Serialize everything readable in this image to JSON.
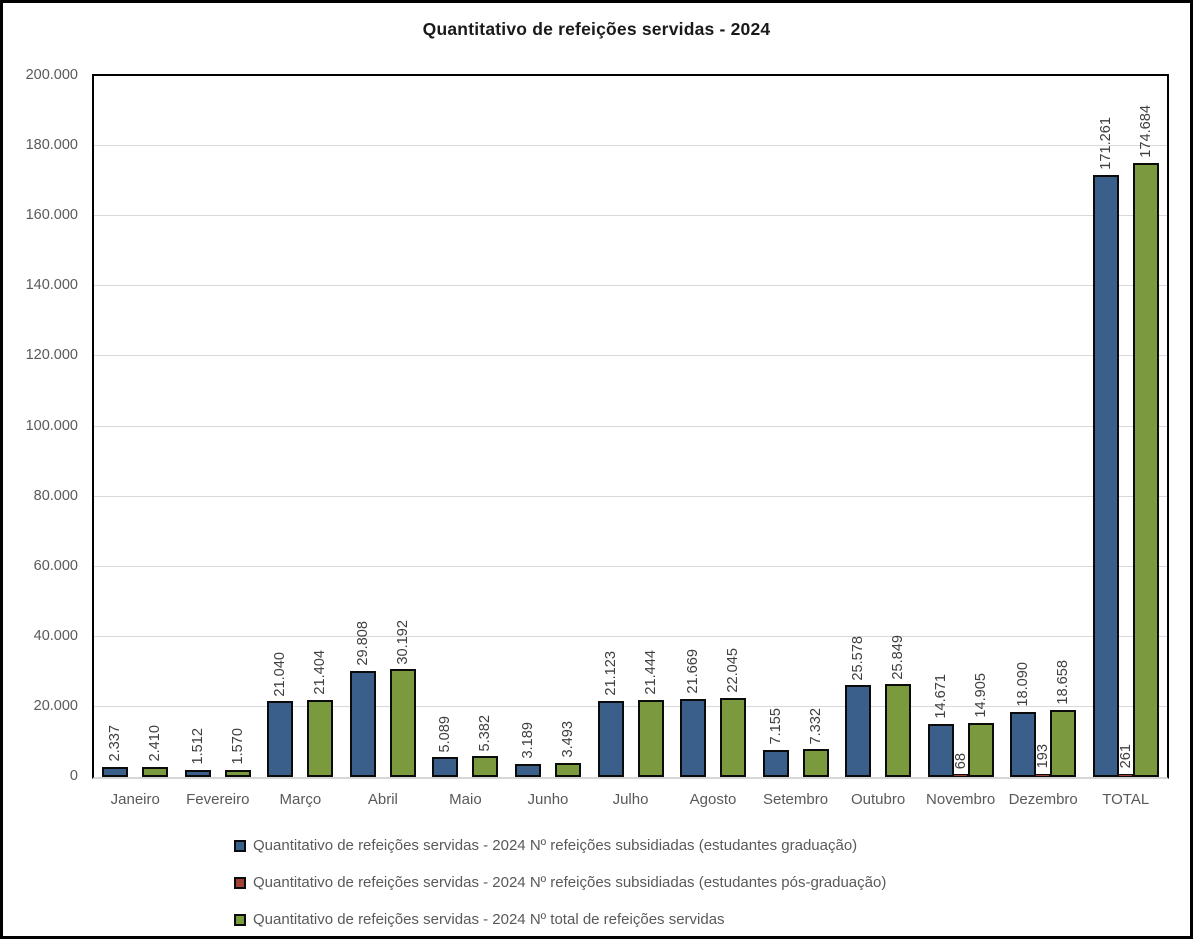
{
  "chart_data": {
    "type": "bar",
    "title": "Quantitativo de refeições servidas - 2024",
    "categories": [
      "Janeiro",
      "Fevereiro",
      "Março",
      "Abril",
      "Maio",
      "Junho",
      "Julho",
      "Agosto",
      "Setembro",
      "Outubro",
      "Novembro",
      "Dezembro",
      "TOTAL"
    ],
    "series": [
      {
        "name": "Quantitativo de refeições servidas - 2024 Nº refeições subsidiadas (estudantes graduação)",
        "color": "#3a5f8a",
        "values": [
          2337,
          1512,
          21040,
          29808,
          5089,
          3189,
          21123,
          21669,
          7155,
          25578,
          14671,
          18090,
          171261
        ]
      },
      {
        "name": "Quantitativo de refeições servidas - 2024 Nº refeições subsidiadas (estudantes pós-graduação)",
        "color": "#9e4139",
        "values": [
          null,
          null,
          null,
          null,
          null,
          null,
          null,
          null,
          null,
          null,
          68,
          193,
          261
        ]
      },
      {
        "name": "Quantitativo de refeições servidas - 2024 Nº total de refeições servidas",
        "color": "#7a9a3d",
        "values": [
          2410,
          1570,
          21404,
          30192,
          5382,
          3493,
          21444,
          22045,
          7332,
          25849,
          14905,
          18658,
          174684
        ]
      }
    ],
    "ylim": [
      0,
      200000
    ],
    "ytick_step": 20000,
    "ytick_labels": [
      "0",
      "20.000",
      "40.000",
      "60.000",
      "80.000",
      "100.000",
      "120.000",
      "140.000",
      "160.000",
      "180.000",
      "200.000"
    ],
    "grid": true,
    "legend_position": "bottom-left",
    "number_format": "thousands-dot",
    "styles": {
      "gridline_color": "#d9d9d9",
      "axis_text_color": "#595959",
      "data_label_color": "#3f3f3f",
      "bar_border_color": "#0b0b0b",
      "plot_border_color": "#000000",
      "outer_border_color": "#000000",
      "background": "#ffffff"
    }
  }
}
